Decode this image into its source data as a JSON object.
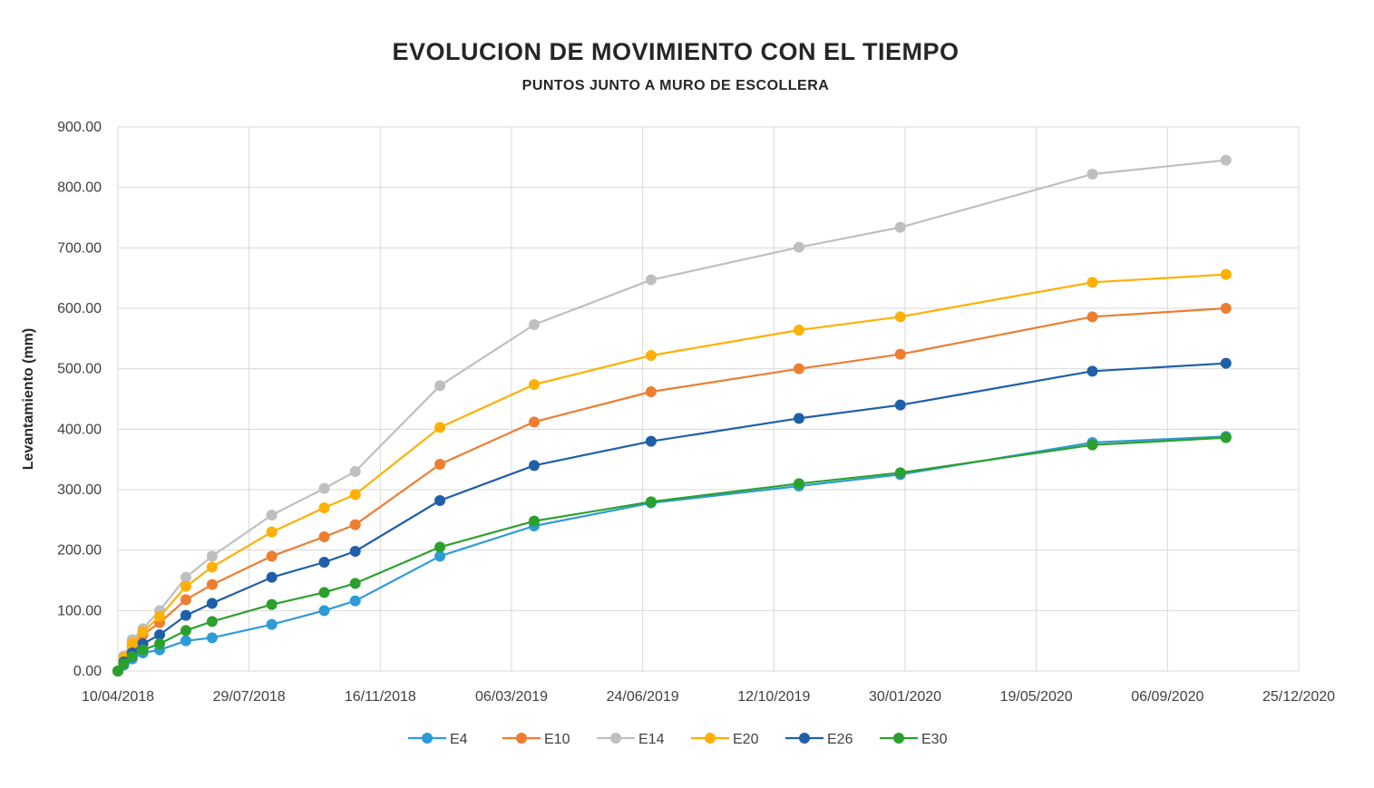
{
  "chart_data": {
    "type": "line",
    "title": "EVOLUCION DE MOVIMIENTO CON EL TIEMPO",
    "subtitle": "PUNTOS JUNTO A MURO DE ESCOLLERA",
    "ylabel": "Levantamiento (mm)",
    "xlabel": "",
    "x_type": "date",
    "xlim": [
      "2018-04-10",
      "2020-12-25"
    ],
    "xticks": [
      "10/04/2018",
      "29/07/2018",
      "16/11/2018",
      "06/03/2019",
      "24/06/2019",
      "12/10/2019",
      "30/01/2020",
      "19/05/2020",
      "06/09/2020",
      "25/12/2020"
    ],
    "ylim": [
      0,
      900
    ],
    "yticks": [
      "0.00",
      "100.00",
      "200.00",
      "300.00",
      "400.00",
      "500.00",
      "600.00",
      "700.00",
      "800.00",
      "900.00"
    ],
    "grid": true,
    "legend_position": "bottom",
    "x": [
      "2018-04-10",
      "2018-04-15",
      "2018-04-22",
      "2018-05-01",
      "2018-05-15",
      "2018-06-06",
      "2018-06-28",
      "2018-08-17",
      "2018-09-30",
      "2018-10-26",
      "2019-01-05",
      "2019-03-25",
      "2019-07-01",
      "2019-11-02",
      "2020-01-26",
      "2020-07-05",
      "2020-10-25"
    ],
    "series": [
      {
        "name": "E4",
        "color": "#2e9bd6",
        "values": [
          0,
          10,
          20,
          30,
          35,
          50,
          55,
          77,
          100,
          116,
          190,
          240,
          278,
          306,
          325,
          378,
          388
        ]
      },
      {
        "name": "E10",
        "color": "#ed7d31",
        "values": [
          0,
          20,
          40,
          60,
          80,
          118,
          143,
          190,
          222,
          242,
          342,
          412,
          462,
          500,
          524,
          586,
          600
        ]
      },
      {
        "name": "E14",
        "color": "#bfbfbf",
        "values": [
          0,
          25,
          52,
          70,
          100,
          155,
          190,
          258,
          302,
          330,
          472,
          573,
          647,
          701,
          734,
          822,
          845
        ]
      },
      {
        "name": "E20",
        "color": "#ffb000",
        "values": [
          0,
          22,
          46,
          65,
          90,
          140,
          172,
          230,
          270,
          292,
          403,
          474,
          522,
          564,
          586,
          643,
          656
        ]
      },
      {
        "name": "E26",
        "color": "#1f5fa8",
        "values": [
          0,
          15,
          30,
          45,
          60,
          92,
          112,
          155,
          180,
          198,
          282,
          340,
          380,
          418,
          440,
          496,
          509
        ]
      },
      {
        "name": "E30",
        "color": "#2ca02c",
        "values": [
          0,
          12,
          24,
          35,
          45,
          67,
          82,
          110,
          130,
          145,
          205,
          248,
          280,
          310,
          328,
          374,
          386
        ]
      }
    ]
  }
}
